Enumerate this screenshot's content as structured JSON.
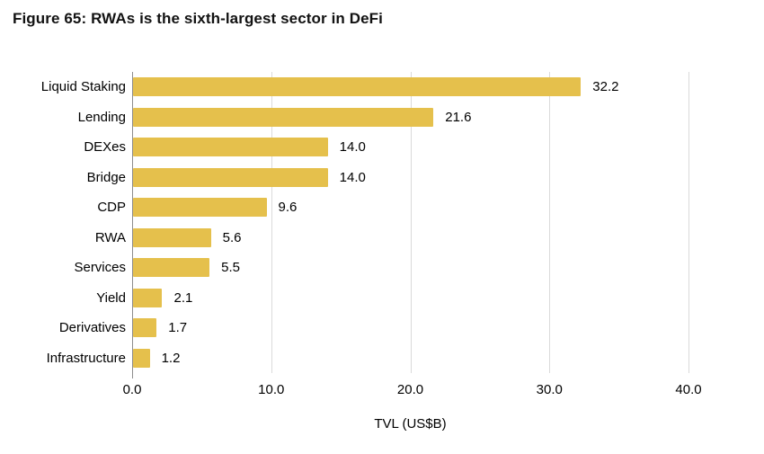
{
  "title": "Figure 65: RWAs is the sixth-largest sector in DeFi",
  "colors": {
    "bar": "#e5c04c",
    "gridline": "#dadada",
    "axis_line": "#8c8c8c",
    "text": "#000000",
    "title_text": "#121212",
    "background": "#ffffff"
  },
  "chart_data": {
    "type": "bar",
    "orientation": "horizontal",
    "title": "Figure 65: RWAs is the sixth-largest sector in DeFi",
    "categories": [
      "Liquid Staking",
      "Lending",
      "DEXes",
      "Bridge",
      "CDP",
      "RWA",
      "Services",
      "Yield",
      "Derivatives",
      "Infrastructure"
    ],
    "values": [
      32.2,
      21.6,
      14.0,
      14.0,
      9.6,
      5.6,
      5.5,
      2.1,
      1.7,
      1.2
    ],
    "value_labels": [
      "32.2",
      "21.6",
      "14.0",
      "14.0",
      "9.6",
      "5.6",
      "5.5",
      "2.1",
      "1.7",
      "1.2"
    ],
    "xlabel": "TVL (US$B)",
    "ylabel": "",
    "xlim": [
      0,
      40
    ],
    "xticks": [
      0,
      10,
      20,
      30,
      40
    ],
    "xtick_labels": [
      "0.0",
      "10.0",
      "20.0",
      "30.0",
      "40.0"
    ],
    "grid": "vertical-only",
    "legend": false,
    "data_labels": "outside-end"
  }
}
